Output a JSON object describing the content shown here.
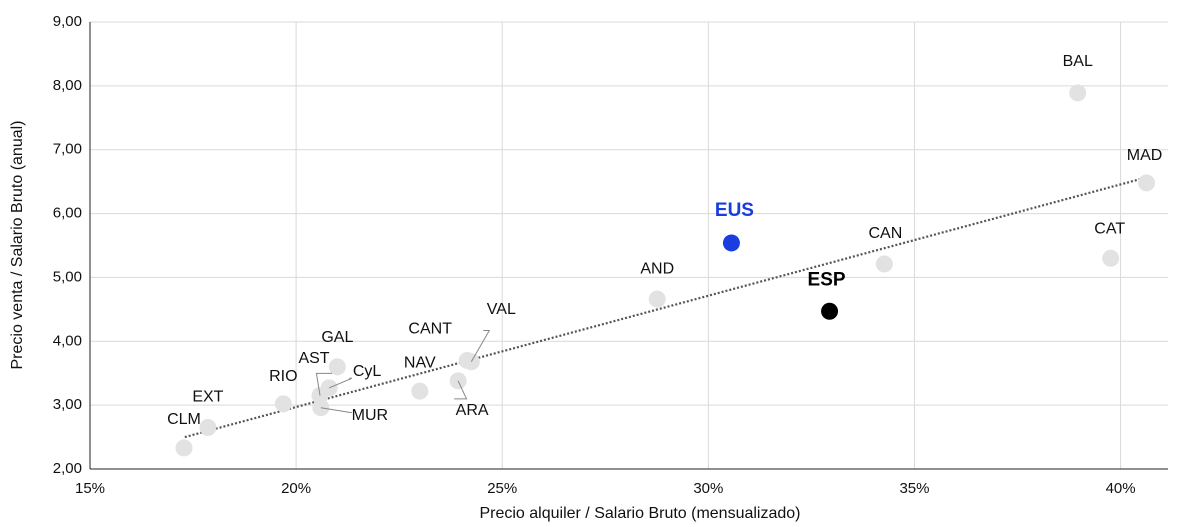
{
  "chart_data": {
    "type": "scatter",
    "xlabel": "Precio alquiler / Salario Bruto (mensualizado)",
    "ylabel": "Precio venta / Salario Bruto (anual)",
    "xlim": [
      15,
      41.15
    ],
    "ylim": [
      2,
      9
    ],
    "xticks": [
      {
        "value": 15,
        "label": "15%"
      },
      {
        "value": 20,
        "label": "20%"
      },
      {
        "value": 25,
        "label": "25%"
      },
      {
        "value": 30,
        "label": "30%"
      },
      {
        "value": 35,
        "label": "35%"
      },
      {
        "value": 40,
        "label": "40%"
      }
    ],
    "yticks": [
      {
        "value": 2,
        "label": "2,00"
      },
      {
        "value": 3,
        "label": "3,00"
      },
      {
        "value": 4,
        "label": "4,00"
      },
      {
        "value": 5,
        "label": "5,00"
      },
      {
        "value": 6,
        "label": "6,00"
      },
      {
        "value": 7,
        "label": "7,00"
      },
      {
        "value": 8,
        "label": "8,00"
      },
      {
        "value": 9,
        "label": "9,00"
      }
    ],
    "grid": true,
    "trendline": {
      "x": [
        17.3,
        40.65
      ],
      "y": [
        2.5,
        6.57
      ],
      "color": "#555555"
    },
    "points": [
      {
        "label": "CLM",
        "x": 17.28,
        "y": 2.33,
        "color": "#e2e2e2"
      },
      {
        "label": "EXT",
        "x": 17.86,
        "y": 2.65,
        "color": "#e2e2e2"
      },
      {
        "label": "RIO",
        "x": 19.69,
        "y": 3.02,
        "color": "#e2e2e2"
      },
      {
        "label": "AST",
        "x": 20.58,
        "y": 3.15,
        "color": "#e2e2e2"
      },
      {
        "label": "CyL",
        "x": 20.8,
        "y": 3.27,
        "color": "#e2e2e2"
      },
      {
        "label": "GAL",
        "x": 21.0,
        "y": 3.6,
        "color": "#e2e2e2"
      },
      {
        "label": "MUR",
        "x": 20.6,
        "y": 2.96,
        "color": "#e2e2e2"
      },
      {
        "label": "NAV",
        "x": 23.0,
        "y": 3.22,
        "color": "#e2e2e2"
      },
      {
        "label": "ARA",
        "x": 23.93,
        "y": 3.38,
        "color": "#e2e2e2"
      },
      {
        "label": "CANT",
        "x": 24.15,
        "y": 3.7,
        "color": "#e2e2e2"
      },
      {
        "label": "VAL",
        "x": 24.25,
        "y": 3.68,
        "color": "#e2e2e2"
      },
      {
        "label": "AND",
        "x": 28.76,
        "y": 4.66,
        "color": "#e2e2e2"
      },
      {
        "label": "EUS",
        "x": 30.56,
        "y": 5.54,
        "color": "#1a3de0"
      },
      {
        "label": "ESP",
        "x": 32.94,
        "y": 4.47,
        "color": "#000000"
      },
      {
        "label": "CAN",
        "x": 34.27,
        "y": 5.21,
        "color": "#e2e2e2"
      },
      {
        "label": "BAL",
        "x": 38.96,
        "y": 7.89,
        "color": "#e2e2e2"
      },
      {
        "label": "MAD",
        "x": 40.63,
        "y": 6.48,
        "color": "#e2e2e2"
      },
      {
        "label": "CAT",
        "x": 39.76,
        "y": 5.3,
        "color": "#e2e2e2"
      }
    ]
  }
}
